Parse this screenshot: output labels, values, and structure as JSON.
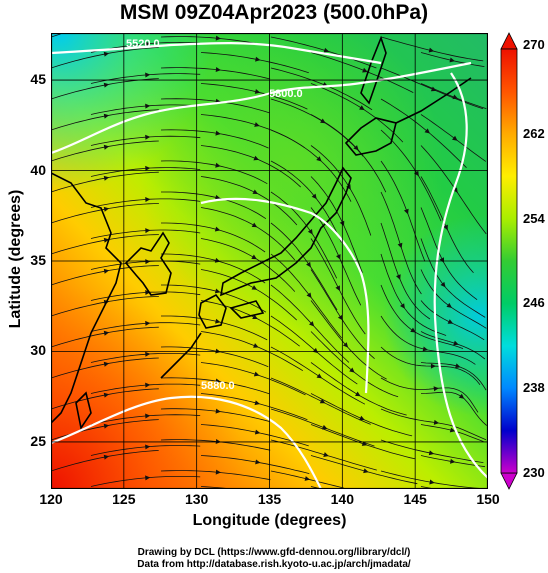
{
  "title": "MSM 09Z04Apr2023 (500.0hPa)",
  "axes": {
    "xlabel": "Longitude (degrees)",
    "ylabel": "Latitude  (degrees)",
    "xticks": [
      "120",
      "125",
      "130",
      "135",
      "140",
      "145",
      "150"
    ],
    "yticks": [
      "45",
      "40",
      "35",
      "30",
      "25"
    ],
    "xlim": [
      120,
      150
    ],
    "ylim": [
      22.4,
      47.6
    ]
  },
  "colorbar": {
    "ticks": [
      "270",
      "262",
      "254",
      "246",
      "238",
      "230"
    ],
    "range": [
      230,
      270
    ],
    "colors": [
      "#cc00cc",
      "#0000cc",
      "#0088ff",
      "#00dddd",
      "#00cc66",
      "#33cc33",
      "#aaee00",
      "#ffee00",
      "#ffaa00",
      "#ff5500",
      "#ee1100"
    ]
  },
  "contours": [
    {
      "label": "5520.0"
    },
    {
      "label": "5800.0"
    },
    {
      "label": "5880.0"
    }
  ],
  "credits": {
    "line1": "Drawing by DCL (https://www.gfd-dennou.org/library/dcl/)",
    "line2": "Data from http://database.rish.kyoto-u.ac.jp/arch/jmadata/"
  }
}
